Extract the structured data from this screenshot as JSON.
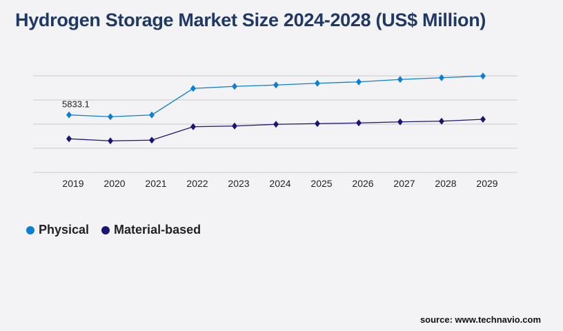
{
  "title": "Hydrogen Storage Market Size 2024-2028 (US$ Million)",
  "source": "source: www.technavio.com",
  "chart_data": {
    "type": "line",
    "title": "Hydrogen Storage Market Size 2024-2028 (US$ Million)",
    "categories": [
      "2019",
      "2020",
      "2021",
      "2022",
      "2023",
      "2024",
      "2025",
      "2026",
      "2027",
      "2028",
      "2029"
    ],
    "ylim": [
      0,
      9800
    ],
    "grid": true,
    "legend": "bottom-left",
    "annotations": [
      {
        "series": "Physical",
        "category": "2019",
        "label": "5833.1"
      }
    ],
    "series": [
      {
        "name": "Physical",
        "color": "#0a7fd4",
        "values": [
          5833.1,
          5650,
          5830,
          8520,
          8730,
          8870,
          9050,
          9190,
          9430,
          9610,
          9780
        ]
      },
      {
        "name": "Material-based",
        "color": "#1a1473",
        "values": [
          3410,
          3200,
          3270,
          4640,
          4710,
          4880,
          4950,
          5020,
          5130,
          5200,
          5390
        ]
      }
    ]
  }
}
